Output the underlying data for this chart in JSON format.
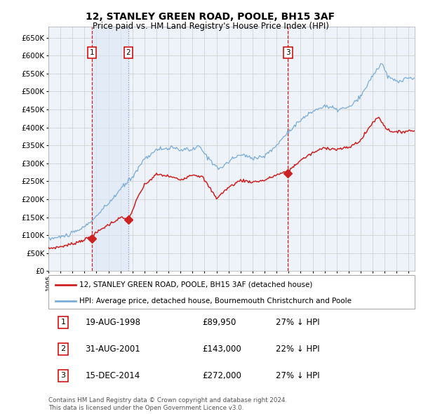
{
  "title": "12, STANLEY GREEN ROAD, POOLE, BH15 3AF",
  "subtitle": "Price paid vs. HM Land Registry's House Price Index (HPI)",
  "hpi_color": "#7aacd6",
  "price_color": "#cc2222",
  "annotation_color": "#cc0000",
  "vline_color_solid": "#cc0000",
  "vline_color_dash": "#8888bb",
  "background_color": "#ffffff",
  "grid_color": "#cccccc",
  "plot_bg": "#eef3fa",
  "shade_color": "#dde8f5",
  "ylim": [
    0,
    680000
  ],
  "yticks": [
    0,
    50000,
    100000,
    150000,
    200000,
    250000,
    300000,
    350000,
    400000,
    450000,
    500000,
    550000,
    600000,
    650000
  ],
  "sales": [
    {
      "date": "1998-08-19",
      "price": 89950,
      "label": "1"
    },
    {
      "date": "2001-08-31",
      "price": 143000,
      "label": "2"
    },
    {
      "date": "2014-12-15",
      "price": 272000,
      "label": "3"
    }
  ],
  "legend_line1": "12, STANLEY GREEN ROAD, POOLE, BH15 3AF (detached house)",
  "legend_line2": "HPI: Average price, detached house, Bournemouth Christchurch and Poole",
  "table_rows": [
    {
      "num": "1",
      "date": "19-AUG-1998",
      "price": "£89,950",
      "pct": "27% ↓ HPI"
    },
    {
      "num": "2",
      "date": "31-AUG-2001",
      "price": "£143,000",
      "pct": "22% ↓ HPI"
    },
    {
      "num": "3",
      "date": "15-DEC-2014",
      "price": "£272,000",
      "pct": "27% ↓ HPI"
    }
  ],
  "footer": "Contains HM Land Registry data © Crown copyright and database right 2024.\nThis data is licensed under the Open Government Licence v3.0.",
  "xstart": 1995.0,
  "xend": 2025.5
}
